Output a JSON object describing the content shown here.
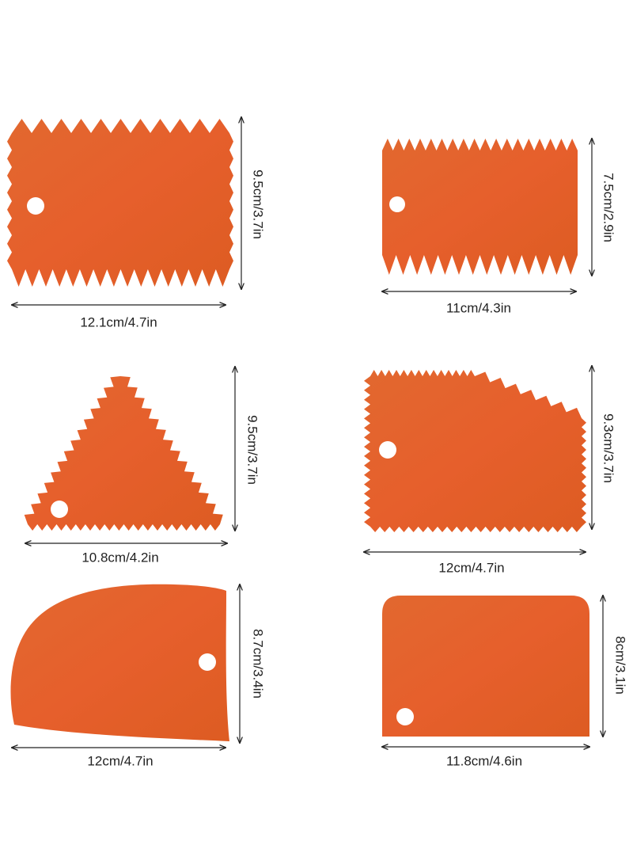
{
  "items": [
    {
      "width": "12.1cm/4.7in",
      "height": "9.5cm/3.7in"
    },
    {
      "width": "11cm/4.3in",
      "height": "7.5cm/2.9in"
    },
    {
      "width": "10.8cm/4.2in",
      "height": "9.5cm/3.7in"
    },
    {
      "width": "12cm/4.7in",
      "height": "9.3cm/3.7in"
    },
    {
      "width": "12cm/4.7in",
      "height": "8.7cm/3.4in"
    },
    {
      "width": "11.8cm/4.6in",
      "height": "8cm/3.1in"
    }
  ]
}
